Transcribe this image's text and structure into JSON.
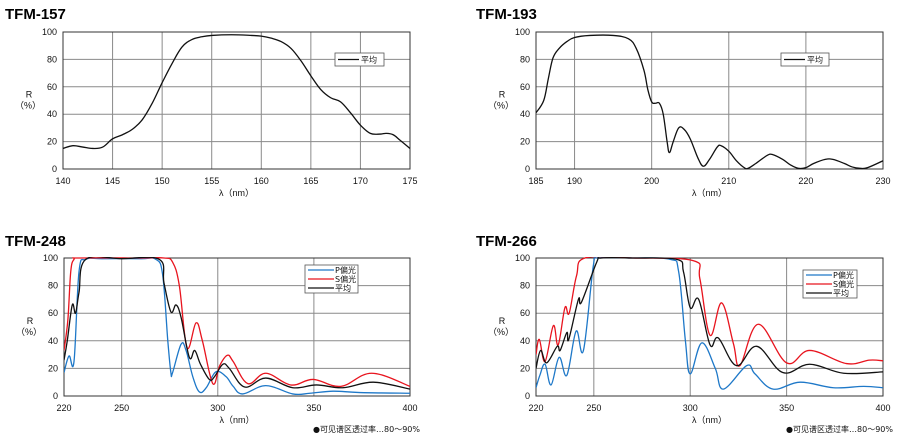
{
  "chart_data": [
    {
      "type": "line",
      "title": "TFM-157",
      "xlabel": "λ（nm）",
      "ylabel": "R",
      "ylabel_unit": "（%）",
      "xlim": [
        140,
        175
      ],
      "ylim": [
        0,
        100
      ],
      "xticks": [
        140,
        145,
        150,
        155,
        160,
        165,
        170,
        175
      ],
      "yticks": [
        0,
        20,
        40,
        60,
        80,
        100
      ],
      "grid": true,
      "legend_placement": "top-right",
      "series": [
        {
          "name": "平均",
          "color": "#111111",
          "points": [
            [
              140,
              15
            ],
            [
              141,
              17
            ],
            [
              142,
              16
            ],
            [
              143,
              15
            ],
            [
              144,
              16
            ],
            [
              145,
              22
            ],
            [
              146,
              25
            ],
            [
              147,
              29
            ],
            [
              148,
              36
            ],
            [
              149,
              48
            ],
            [
              150,
              63
            ],
            [
              151,
              77
            ],
            [
              152,
              89
            ],
            [
              153,
              94.5
            ],
            [
              154,
              96.5
            ],
            [
              155,
              97.5
            ],
            [
              157,
              98
            ],
            [
              159,
              97.5
            ],
            [
              160,
              97
            ],
            [
              161,
              95.5
            ],
            [
              162,
              93
            ],
            [
              163,
              88
            ],
            [
              164,
              79
            ],
            [
              165,
              68
            ],
            [
              166,
              58
            ],
            [
              167,
              52
            ],
            [
              168,
              49
            ],
            [
              169,
              41
            ],
            [
              170,
              32
            ],
            [
              171,
              26
            ],
            [
              172,
              25.5
            ],
            [
              172.6,
              26
            ],
            [
              173.3,
              25
            ],
            [
              174,
              21
            ],
            [
              175,
              15
            ]
          ]
        }
      ]
    },
    {
      "type": "line",
      "title": "TFM-193",
      "xlabel": "λ（nm）",
      "ylabel": "R",
      "ylabel_unit": "（%）",
      "xlim": [
        185,
        230
      ],
      "ylim": [
        0,
        100
      ],
      "xticks": [
        185,
        190,
        200,
        210,
        220,
        230
      ],
      "yticks": [
        0,
        20,
        40,
        60,
        80,
        100
      ],
      "grid": true,
      "legend_placement": "top-right",
      "series": [
        {
          "name": "平均",
          "color": "#111111",
          "points": [
            [
              185,
              41
            ],
            [
              186,
              50
            ],
            [
              186.6,
              66
            ],
            [
              187.2,
              81
            ],
            [
              188,
              88
            ],
            [
              189,
              93
            ],
            [
              190,
              96
            ],
            [
              192,
              97.5
            ],
            [
              195,
              97.5
            ],
            [
              197,
              95
            ],
            [
              198,
              88
            ],
            [
              199,
              72
            ],
            [
              199.5,
              58
            ],
            [
              200,
              49
            ],
            [
              200.5,
              48
            ],
            [
              201,
              48
            ],
            [
              201.5,
              40
            ],
            [
              202,
              20
            ],
            [
              202.3,
              12
            ],
            [
              202.8,
              20
            ],
            [
              203.5,
              30
            ],
            [
              204.2,
              29
            ],
            [
              205,
              22
            ],
            [
              206,
              8
            ],
            [
              206.7,
              2
            ],
            [
              207.5,
              7
            ],
            [
              208.5,
              16
            ],
            [
              209,
              17
            ],
            [
              210,
              13
            ],
            [
              211,
              6
            ],
            [
              212,
              1
            ],
            [
              212.5,
              0.5
            ],
            [
              213.5,
              4
            ],
            [
              215,
              10
            ],
            [
              215.7,
              10.5
            ],
            [
              217,
              7
            ],
            [
              218,
              3
            ],
            [
              219,
              0.5
            ],
            [
              220,
              1
            ],
            [
              221,
              4
            ],
            [
              222.5,
              7
            ],
            [
              223.5,
              7
            ],
            [
              225,
              4
            ],
            [
              226,
              1.5
            ],
            [
              227,
              0.5
            ],
            [
              228,
              1
            ],
            [
              230,
              6
            ]
          ]
        }
      ]
    },
    {
      "type": "line",
      "title": "TFM-248",
      "xlabel": "λ（nm）",
      "ylabel": "R",
      "ylabel_unit": "（%）",
      "xlim": [
        220,
        400
      ],
      "ylim": [
        0,
        100
      ],
      "xticks": [
        220,
        250,
        300,
        350,
        400
      ],
      "yticks": [
        0,
        20,
        40,
        60,
        80,
        100
      ],
      "grid": true,
      "legend_placement": "top-right",
      "footnote": "●可见谱区透过率…80～90%",
      "series": [
        {
          "name": "P偏光",
          "color": "#1e78c8",
          "points": [
            [
              220,
              17
            ],
            [
              222.6,
              29
            ],
            [
              225.2,
              25
            ],
            [
              227.8,
              90
            ],
            [
              231.3,
              99
            ],
            [
              240,
              99.5
            ],
            [
              260,
              99.5
            ],
            [
              267.8,
              99
            ],
            [
              271.3,
              88
            ],
            [
              274,
              40
            ],
            [
              275.6,
              17
            ],
            [
              276.5,
              17
            ],
            [
              280.9,
              37.5
            ],
            [
              283.5,
              33
            ],
            [
              287,
              14
            ],
            [
              290.4,
              3
            ],
            [
              294,
              6
            ],
            [
              299,
              17.5
            ],
            [
              304.3,
              14
            ],
            [
              308,
              7
            ],
            [
              313,
              1.5
            ],
            [
              325,
              7.5
            ],
            [
              339,
              1.5
            ],
            [
              348,
              2
            ],
            [
              360,
              3.5
            ],
            [
              374,
              2.5
            ],
            [
              400,
              2
            ]
          ]
        },
        {
          "name": "S偏光",
          "color": "#e8141e",
          "points": [
            [
              220,
              33
            ],
            [
              222,
              55
            ],
            [
              223.5,
              90
            ],
            [
              225.2,
              99
            ],
            [
              228,
              100
            ],
            [
              260,
              100
            ],
            [
              272,
              100
            ],
            [
              276.5,
              97
            ],
            [
              280,
              80
            ],
            [
              284,
              35
            ],
            [
              288.7,
              53
            ],
            [
              292,
              40
            ],
            [
              297.4,
              9
            ],
            [
              301,
              22
            ],
            [
              305,
              29.5
            ],
            [
              308,
              25
            ],
            [
              315.6,
              9
            ],
            [
              325,
              16.5
            ],
            [
              338,
              8
            ],
            [
              349.6,
              12
            ],
            [
              364,
              7
            ],
            [
              380,
              16.5
            ],
            [
              400,
              7
            ]
          ]
        },
        {
          "name": "平均",
          "color": "#111111",
          "points": [
            [
              220,
              26
            ],
            [
              221.7,
              40
            ],
            [
              224.3,
              66
            ],
            [
              226,
              60
            ],
            [
              227.8,
              75
            ],
            [
              231.3,
              99
            ],
            [
              250,
              99.5
            ],
            [
              269.6,
              99
            ],
            [
              272,
              82
            ],
            [
              275.6,
              61
            ],
            [
              278.3,
              66
            ],
            [
              280.9,
              57
            ],
            [
              285.2,
              28
            ],
            [
              288,
              33
            ],
            [
              291,
              23
            ],
            [
              295.6,
              12
            ],
            [
              298.3,
              14
            ],
            [
              302.6,
              23
            ],
            [
              306,
              20
            ],
            [
              314,
              6.5
            ],
            [
              325,
              13
            ],
            [
              339,
              6
            ],
            [
              351.3,
              8
            ],
            [
              365,
              6
            ],
            [
              381,
              10
            ],
            [
              400,
              5
            ]
          ]
        }
      ]
    },
    {
      "type": "line",
      "title": "TFM-266",
      "xlabel": "λ（nm）",
      "ylabel": "R",
      "ylabel_unit": "（%）",
      "xlim": [
        220,
        400
      ],
      "ylim": [
        0,
        100
      ],
      "xticks": [
        220,
        250,
        300,
        350,
        400
      ],
      "yticks": [
        0,
        20,
        40,
        60,
        80,
        100
      ],
      "grid": true,
      "legend_placement": "top-right",
      "footnote": "●可见谱区透过率…80～90%",
      "series": [
        {
          "name": "P偏光",
          "color": "#1e78c8",
          "points": [
            [
              220,
              6
            ],
            [
              222,
              15
            ],
            [
              224.7,
              23
            ],
            [
              227.8,
              8
            ],
            [
              232,
              28
            ],
            [
              236,
              15
            ],
            [
              240.8,
              47
            ],
            [
              244.6,
              33
            ],
            [
              249.8,
              95
            ],
            [
              252.4,
              100
            ],
            [
              270,
              100
            ],
            [
              289.6,
              99
            ],
            [
              294,
              90
            ],
            [
              297.5,
              40
            ],
            [
              300,
              16
            ],
            [
              306,
              38.5
            ],
            [
              313,
              20
            ],
            [
              317.2,
              5
            ],
            [
              329.3,
              22
            ],
            [
              333.6,
              16
            ],
            [
              343,
              5
            ],
            [
              357,
              10
            ],
            [
              374.3,
              6
            ],
            [
              390,
              7
            ],
            [
              400,
              6
            ]
          ]
        },
        {
          "name": "S偏光",
          "color": "#e8141e",
          "points": [
            [
              220,
              30
            ],
            [
              221.7,
              41
            ],
            [
              224.7,
              25
            ],
            [
              229,
              51
            ],
            [
              231.5,
              37
            ],
            [
              235,
              64
            ],
            [
              237.2,
              60
            ],
            [
              241,
              87
            ],
            [
              245.4,
              100
            ],
            [
              270,
              100
            ],
            [
              301.7,
              98
            ],
            [
              305,
              85
            ],
            [
              310.3,
              44
            ],
            [
              316.3,
              67.5
            ],
            [
              322.4,
              38
            ],
            [
              325.8,
              22
            ],
            [
              335.3,
              52
            ],
            [
              350,
              24
            ],
            [
              362,
              33
            ],
            [
              381,
              23.5
            ],
            [
              393,
              26
            ],
            [
              400,
              25.5
            ]
          ]
        },
        {
          "name": "平均",
          "color": "#111111",
          "points": [
            [
              220,
              20
            ],
            [
              222.4,
              33
            ],
            [
              225.5,
              24
            ],
            [
              231,
              36
            ],
            [
              232.5,
              33
            ],
            [
              236,
              46
            ],
            [
              237,
              41
            ],
            [
              242,
              70
            ],
            [
              243.6,
              68
            ],
            [
              251.5,
              97
            ],
            [
              254,
              100
            ],
            [
              270,
              100
            ],
            [
              293,
              99
            ],
            [
              296.5,
              90
            ],
            [
              300,
              64
            ],
            [
              304.4,
              70
            ],
            [
              310.3,
              37
            ],
            [
              314.6,
              42
            ],
            [
              324,
              22
            ],
            [
              334.5,
              36
            ],
            [
              348,
              17
            ],
            [
              362,
              23
            ],
            [
              379.6,
              16.5
            ],
            [
              400,
              17.5
            ]
          ]
        }
      ]
    }
  ]
}
